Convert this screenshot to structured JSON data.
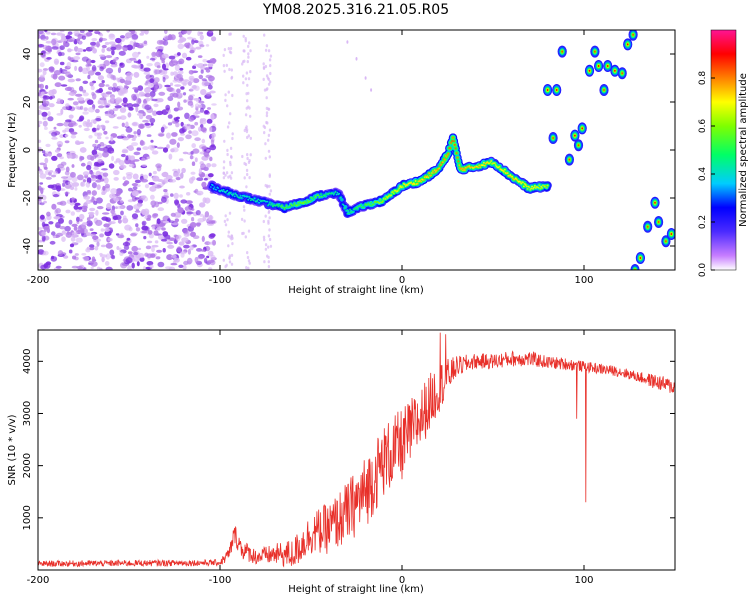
{
  "title": "YM08.2025.316.21.05.R05",
  "colors": {
    "background": "#ffffff",
    "axes": "#000000",
    "snr_line": "#e8302a",
    "scatter_faint": "#d9b8f5",
    "scatter_mid": "#b27ae8",
    "scatter_dark": "#7b2de0"
  },
  "chart_data": [
    {
      "type": "heatmap",
      "title": "YM08.2025.316.21.05.R05",
      "xlabel": "Height of straight line (km)",
      "ylabel": "Frequency (Hz)",
      "xlim": [
        -200,
        150
      ],
      "ylim": [
        -50,
        50
      ],
      "xticks": [
        -200,
        -100,
        0,
        100
      ],
      "yticks": [
        -40,
        -20,
        0,
        20,
        40
      ],
      "colorbar": {
        "label": "Normalized spectral amplitude",
        "range": [
          0,
          1
        ],
        "ticks": [
          "0.0",
          "0.2",
          "0.4",
          "0.6",
          "0.8"
        ],
        "tick_values": [
          0.0,
          0.2,
          0.4,
          0.6,
          0.8
        ],
        "colormap": [
          "#ffffff",
          "#8a2be2",
          "#0000ff",
          "#00ffff",
          "#00ff00",
          "#ffff00",
          "#ff0000",
          "#ff1493"
        ]
      },
      "noise_region": {
        "x_range": [
          -200,
          -103
        ],
        "description_level": 0.08
      },
      "ridge": {
        "x": [
          -105,
          -95,
          -85,
          -75,
          -65,
          -55,
          -45,
          -35,
          -30,
          -20,
          -10,
          0,
          10,
          20,
          25,
          28,
          32,
          40,
          50,
          60,
          70,
          80
        ],
        "y": [
          -15,
          -18,
          -20,
          -22,
          -24,
          -22,
          -19,
          -18,
          -26,
          -23,
          -21,
          -15,
          -13,
          -8,
          -2,
          5,
          -8,
          -7,
          -5,
          -11,
          -16,
          -15
        ],
        "amp": [
          0.3,
          0.35,
          0.35,
          0.35,
          0.45,
          0.5,
          0.45,
          0.35,
          0.4,
          0.45,
          0.55,
          0.6,
          0.65,
          0.7,
          0.7,
          0.75,
          0.7,
          0.65,
          0.6,
          0.65,
          0.6,
          0.55
        ]
      },
      "islands": [
        {
          "x": 80,
          "y": 25,
          "amp": 0.85
        },
        {
          "x": 85,
          "y": 25,
          "amp": 0.85
        },
        {
          "x": 88,
          "y": 41,
          "amp": 0.8
        },
        {
          "x": 83,
          "y": 5,
          "amp": 0.8
        },
        {
          "x": 92,
          "y": -4,
          "amp": 0.8
        },
        {
          "x": 95,
          "y": 6,
          "amp": 0.85
        },
        {
          "x": 99,
          "y": 9,
          "amp": 0.85
        },
        {
          "x": 97,
          "y": 2,
          "amp": 0.8
        },
        {
          "x": 103,
          "y": 33,
          "amp": 0.85
        },
        {
          "x": 106,
          "y": 41,
          "amp": 0.8
        },
        {
          "x": 108,
          "y": 35,
          "amp": 0.85
        },
        {
          "x": 113,
          "y": 35,
          "amp": 0.85
        },
        {
          "x": 111,
          "y": 25,
          "amp": 0.8
        },
        {
          "x": 117,
          "y": 33,
          "amp": 0.85
        },
        {
          "x": 121,
          "y": 32,
          "amp": 0.8
        },
        {
          "x": 124,
          "y": 44,
          "amp": 0.85
        },
        {
          "x": 127,
          "y": 48,
          "amp": 0.8
        },
        {
          "x": 128,
          "y": -50,
          "amp": 0.8
        },
        {
          "x": 131,
          "y": -45,
          "amp": 0.85
        },
        {
          "x": 135,
          "y": -32,
          "amp": 0.8
        },
        {
          "x": 139,
          "y": -22,
          "amp": 0.85
        },
        {
          "x": 141,
          "y": -30,
          "amp": 0.8
        },
        {
          "x": 145,
          "y": -38,
          "amp": 0.8
        },
        {
          "x": 148,
          "y": -35,
          "amp": 0.85
        }
      ]
    },
    {
      "type": "line",
      "xlabel": "Height of straight line (km)",
      "ylabel": "SNR (10 * v/v)",
      "xlim": [
        -200,
        150
      ],
      "ylim": [
        0,
        4600
      ],
      "xticks": [
        -200,
        -100,
        0,
        100
      ],
      "yticks": [
        1000,
        2000,
        3000,
        4000
      ],
      "series": [
        {
          "name": "SNR",
          "x": [
            -200,
            -150,
            -100,
            -95,
            -92,
            -88,
            -80,
            -70,
            -60,
            -50,
            -40,
            -30,
            -20,
            -10,
            0,
            10,
            20,
            30,
            40,
            50,
            60,
            70,
            80,
            90,
            100,
            110,
            120,
            130,
            140,
            150
          ],
          "mean": [
            120,
            130,
            140,
            300,
            700,
            400,
            250,
            300,
            300,
            700,
            800,
            1100,
            1500,
            2100,
            2400,
            2900,
            3500,
            3900,
            4000,
            4000,
            4050,
            4050,
            3980,
            3950,
            3900,
            3850,
            3800,
            3700,
            3600,
            3500
          ],
          "spread": [
            60,
            60,
            60,
            150,
            200,
            200,
            150,
            200,
            300,
            400,
            500,
            600,
            700,
            700,
            700,
            600,
            500,
            200,
            150,
            150,
            150,
            150,
            120,
            120,
            100,
            100,
            100,
            100,
            150,
            150
          ]
        }
      ],
      "spikes": [
        {
          "x": 21,
          "y": 4550
        },
        {
          "x": 24,
          "y": 4520
        },
        {
          "x": 101,
          "y": 1300
        },
        {
          "x": 96,
          "y": 2900
        }
      ]
    }
  ]
}
